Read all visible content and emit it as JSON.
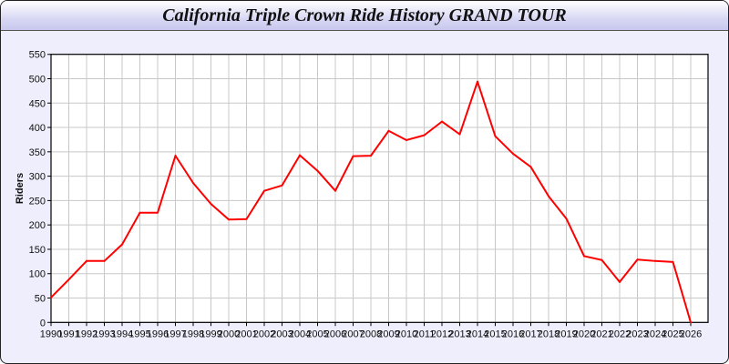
{
  "window": {
    "title": "California Triple Crown Ride History GRAND TOUR"
  },
  "chart_data": {
    "type": "line",
    "title": "California Triple Crown Ride History GRAND TOUR",
    "xlabel": "",
    "ylabel": "Riders",
    "ylim": [
      0,
      550
    ],
    "yticks": [
      0,
      50,
      100,
      150,
      200,
      250,
      300,
      350,
      400,
      450,
      500,
      550
    ],
    "grid": true,
    "line_color": "#ff0000",
    "categories": [
      "1990",
      "1991",
      "1992",
      "1993",
      "1994",
      "1995",
      "1996",
      "1997",
      "1998",
      "1999",
      "2000",
      "2001",
      "2002",
      "2003",
      "2004",
      "2005",
      "2006",
      "2007",
      "2008",
      "2009",
      "2010",
      "2011",
      "2012",
      "2013",
      "2014",
      "2015",
      "2016",
      "2017",
      "2018",
      "2019",
      "2020",
      "2021",
      "2022",
      "2023",
      "2024",
      "2025",
      "2026"
    ],
    "values": [
      51,
      88,
      126,
      126,
      160,
      225,
      225,
      342,
      286,
      243,
      211,
      212,
      270,
      281,
      343,
      311,
      270,
      341,
      342,
      393,
      374,
      384,
      412,
      386,
      494,
      382,
      346,
      319,
      259,
      213,
      136,
      128,
      83,
      129,
      126,
      124,
      0
    ]
  }
}
